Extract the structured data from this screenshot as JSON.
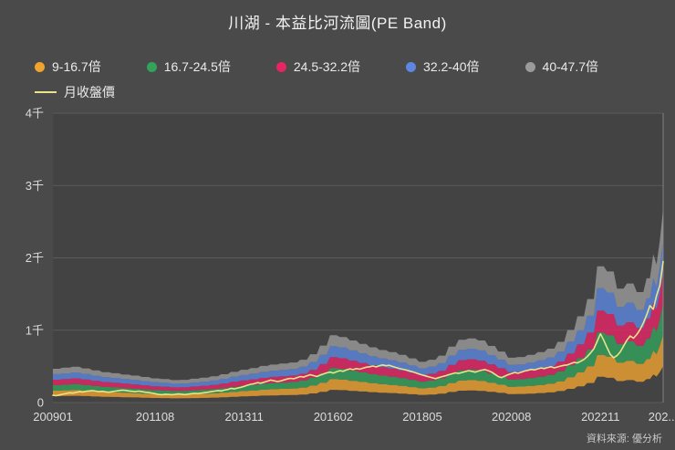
{
  "chart_data": {
    "type": "area",
    "subtype": "pe-band-river",
    "title": "川湖 - 本益比河流圖(PE Band)",
    "source": "資料來源: 優分析",
    "legend_position": "top",
    "grid": "horizontal",
    "x_unit": "month",
    "x_range": [
      "2009-01",
      "2024-06"
    ],
    "x_tick_labels": [
      "200901",
      "201108",
      "201311",
      "201602",
      "201805",
      "202008",
      "202211",
      "202..."
    ],
    "x_tick_indices": [
      0,
      31,
      58,
      85,
      112,
      139,
      166,
      185
    ],
    "y_tick_labels": [
      "0",
      "1千",
      "2千",
      "3千",
      "4千"
    ],
    "y_tick_values": [
      0,
      1000,
      2000,
      3000,
      4000
    ],
    "ylim": [
      0,
      4000
    ],
    "pe_multiples": [
      9,
      16.7,
      24.5,
      32.2,
      40,
      47.7
    ],
    "bands": [
      {
        "label": "9-16.7倍",
        "color": "#f0a32f"
      },
      {
        "label": "16.7-24.5倍",
        "color": "#33a35c"
      },
      {
        "label": "24.5-32.2倍",
        "color": "#e62565"
      },
      {
        "label": "32.2-40倍",
        "color": "#5d87e0"
      },
      {
        "label": "40-47.7倍",
        "color": "#9b9b9b"
      }
    ],
    "eps_ttm": [
      9.8,
      9.8,
      9.8,
      10.1,
      10.1,
      10.1,
      10.4,
      10.4,
      10.4,
      9.9,
      9.9,
      9.9,
      9.3,
      9.3,
      9.3,
      8.8,
      8.8,
      8.8,
      8.5,
      8.5,
      8.5,
      8.1,
      8.1,
      8.1,
      7.8,
      7.8,
      7.8,
      7.4,
      7.4,
      7.4,
      7.0,
      7.0,
      7.0,
      6.8,
      6.8,
      6.8,
      6.5,
      6.5,
      6.5,
      6.6,
      6.6,
      6.6,
      6.9,
      6.9,
      6.9,
      7.2,
      7.2,
      7.2,
      7.6,
      7.6,
      7.6,
      8.2,
      8.2,
      8.2,
      8.9,
      8.9,
      8.9,
      9.5,
      9.5,
      9.5,
      10.0,
      10.0,
      10.0,
      10.6,
      10.6,
      10.6,
      11.0,
      11.0,
      11.0,
      11.3,
      11.3,
      11.3,
      11.6,
      11.6,
      11.6,
      12.4,
      12.4,
      12.4,
      14.0,
      14.0,
      14.0,
      16.5,
      16.5,
      16.5,
      19.5,
      19.5,
      19.5,
      19.0,
      19.0,
      19.0,
      18.0,
      18.0,
      18.0,
      17.0,
      17.0,
      17.0,
      16.0,
      16.0,
      16.0,
      15.2,
      15.2,
      15.2,
      14.6,
      14.6,
      14.6,
      13.8,
      13.8,
      13.8,
      12.8,
      12.8,
      12.8,
      11.8,
      11.8,
      11.8,
      12.4,
      12.4,
      12.4,
      13.6,
      13.6,
      13.6,
      16.2,
      16.2,
      16.2,
      18.2,
      18.2,
      18.2,
      18.6,
      18.6,
      18.6,
      18.0,
      18.0,
      18.0,
      16.4,
      16.4,
      16.4,
      14.8,
      14.8,
      14.8,
      13.0,
      13.0,
      13.0,
      13.2,
      13.2,
      13.2,
      13.8,
      13.8,
      13.8,
      14.6,
      14.6,
      14.6,
      15.6,
      15.6,
      15.6,
      17.6,
      17.6,
      17.6,
      21.0,
      21.0,
      21.0,
      25.0,
      25.0,
      25.0,
      30.0,
      30.0,
      30.0,
      39.5,
      39.5,
      39.5,
      38.0,
      38.0,
      38.0,
      33.0,
      33.0,
      33.0,
      34.5,
      34.5,
      34.5,
      32.0,
      32.0,
      32.0,
      36.0,
      36.0,
      43.0,
      40.0,
      47.0,
      56.0
    ],
    "price_line": {
      "label": "月收盤價",
      "color": "#e9e48a",
      "values": [
        100,
        95,
        105,
        115,
        125,
        135,
        130,
        140,
        150,
        145,
        155,
        160,
        165,
        158,
        150,
        155,
        148,
        142,
        150,
        158,
        165,
        172,
        168,
        160,
        155,
        150,
        158,
        150,
        142,
        138,
        130,
        122,
        112,
        108,
        115,
        112,
        108,
        112,
        118,
        115,
        110,
        116,
        122,
        128,
        124,
        130,
        136,
        142,
        150,
        158,
        165,
        160,
        172,
        180,
        195,
        188,
        200,
        210,
        225,
        240,
        252,
        260,
        275,
        268,
        280,
        295,
        310,
        302,
        290,
        298,
        312,
        325,
        335,
        328,
        345,
        360,
        352,
        370,
        385,
        372,
        360,
        378,
        395,
        410,
        420,
        408,
        425,
        440,
        432,
        450,
        465,
        455,
        470,
        460,
        475,
        488,
        495,
        505,
        492,
        510,
        520,
        508,
        515,
        498,
        485,
        472,
        460,
        450,
        438,
        425,
        410,
        395,
        380,
        368,
        355,
        342,
        330,
        345,
        358,
        370,
        385,
        398,
        410,
        402,
        415,
        428,
        440,
        432,
        420,
        435,
        448,
        455,
        440,
        420,
        390,
        360,
        345,
        365,
        385,
        400,
        415,
        405,
        420,
        435,
        445,
        458,
        450,
        465,
        478,
        470,
        485,
        495,
        480,
        492,
        505,
        515,
        520,
        538,
        555,
        548,
        570,
        595,
        635,
        685,
        745,
        845,
        950,
        860,
        760,
        665,
        620,
        648,
        700,
        780,
        860,
        920,
        890,
        940,
        1010,
        1100,
        1210,
        1340,
        1290,
        1480,
        1620,
        1950
      ]
    }
  }
}
